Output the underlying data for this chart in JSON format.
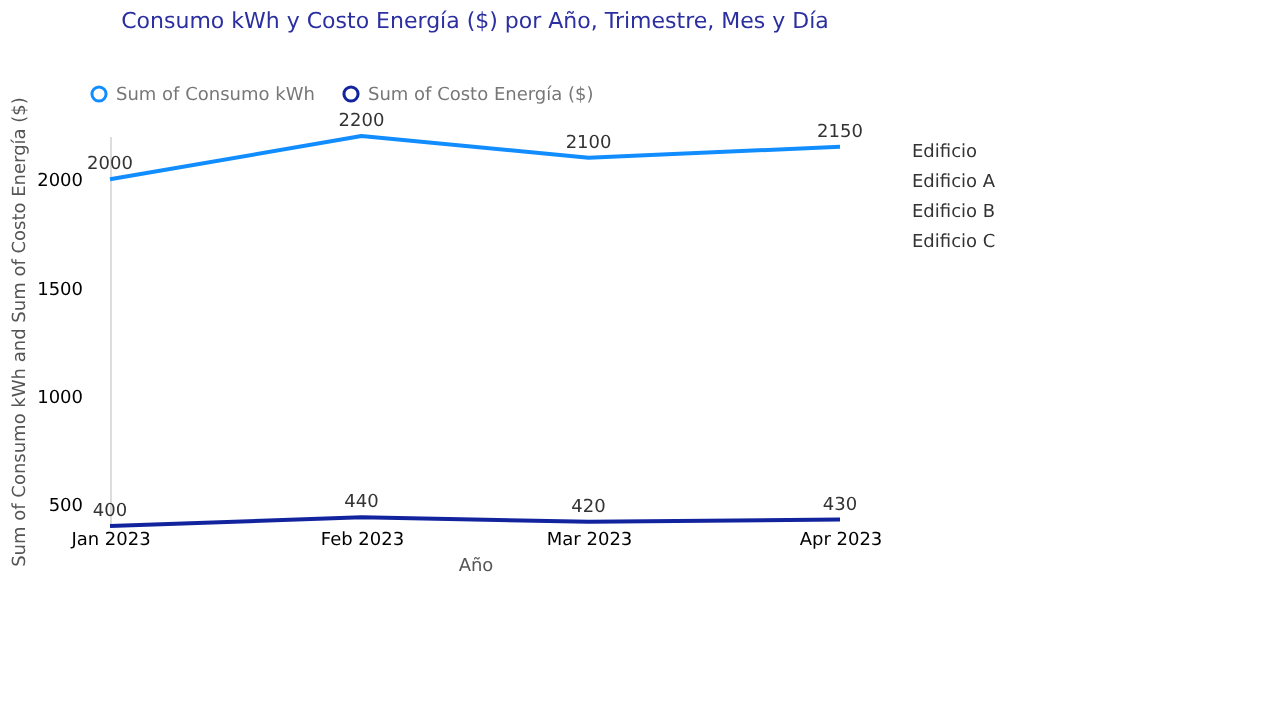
{
  "chart_data": {
    "type": "line",
    "title": "Consumo kWh y Costo Energía ($) por Año, Trimestre, Mes y Día",
    "xlabel": "Año",
    "ylabel": "Sum of Consumo kWh and Sum of Costo Energía ($)",
    "x": [
      "2023-01",
      "2023-02",
      "2023-03",
      "2023-04"
    ],
    "xlim": [
      "2023-01",
      "2023-04"
    ],
    "xticks": [
      {
        "value": "2023-01",
        "label": "Jan 2023"
      },
      {
        "value": "2023-02",
        "label": "Feb 2023"
      },
      {
        "value": "2023-03",
        "label": "Mar 2023"
      },
      {
        "value": "2023-04",
        "label": "Apr 2023"
      }
    ],
    "ylim": [
      400,
      2200
    ],
    "yticks": [
      500,
      1000,
      1500,
      2000
    ],
    "series": [
      {
        "name": "Sum of Consumo kWh",
        "color": "#118dff",
        "values": [
          2000,
          2200,
          2100,
          2150
        ]
      },
      {
        "name": "Sum of Costo Energía ($)",
        "color": "#12239e",
        "values": [
          400,
          440,
          420,
          430
        ]
      }
    ],
    "data_labels": true,
    "legend": "top left",
    "grid": false,
    "marker": "none",
    "annotations": [
      "Edificio",
      "Edificio A",
      "Edificio B",
      "Edificio C"
    ]
  }
}
